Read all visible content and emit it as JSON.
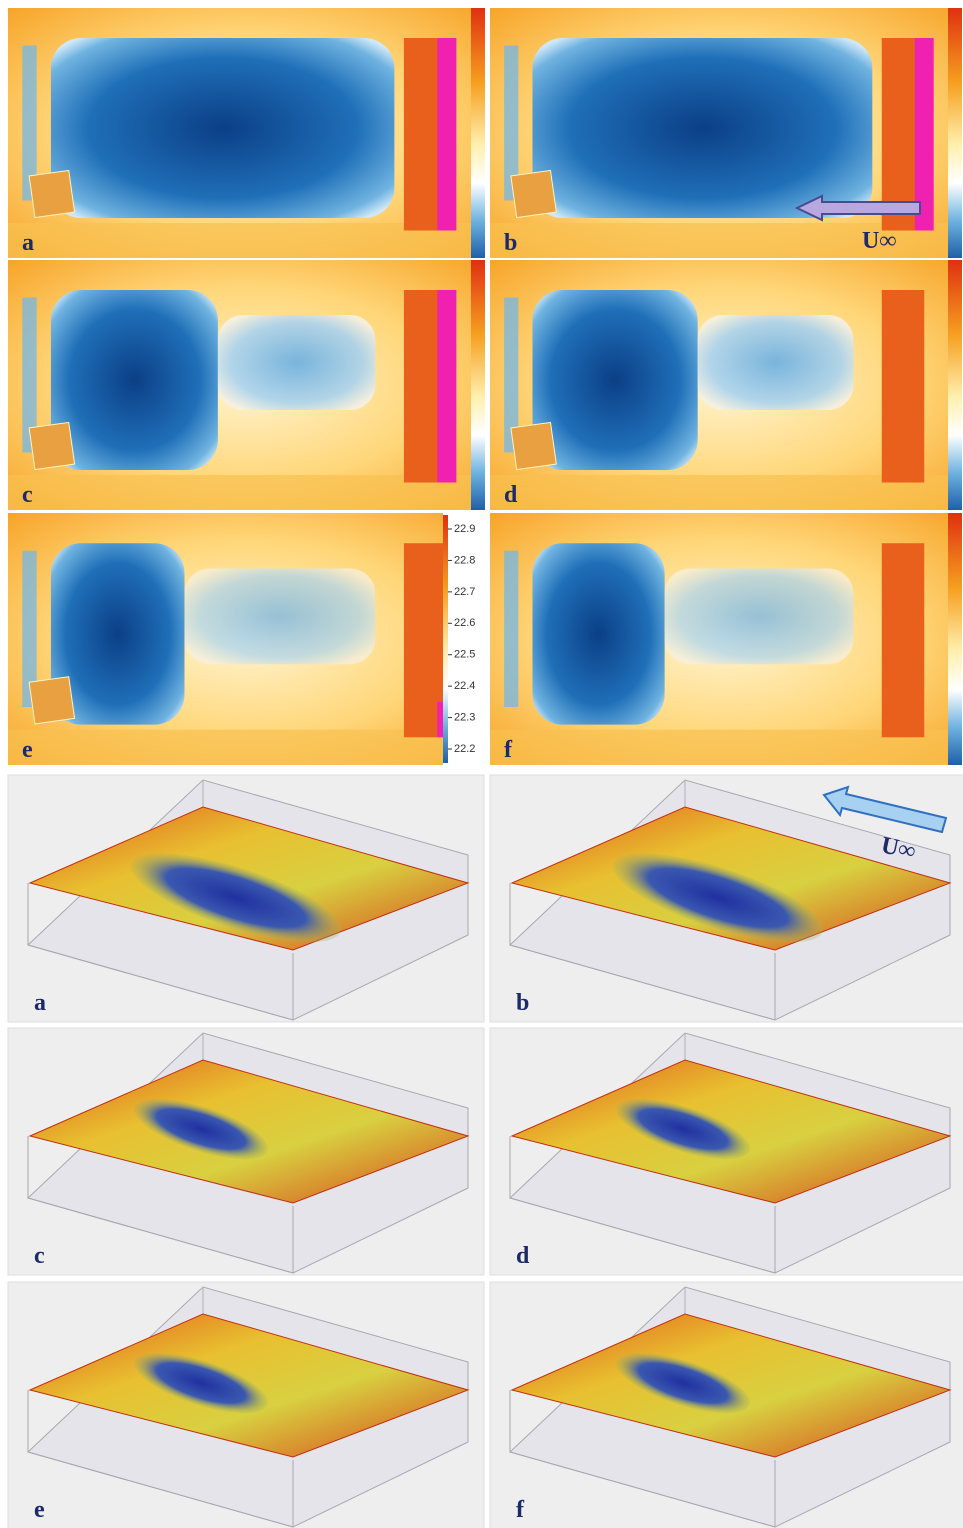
{
  "thermal_panels": [
    {
      "label": "a"
    },
    {
      "label": "b"
    },
    {
      "label": "c"
    },
    {
      "label": "d"
    },
    {
      "label": "e"
    },
    {
      "label": "f"
    }
  ],
  "flow_label_top": "U∞",
  "colorbar": {
    "ticks": [
      22.9,
      22.8,
      22.7,
      22.6,
      22.5,
      22.4,
      22.3,
      22.2
    ]
  },
  "surface_panels": [
    {
      "label": "a"
    },
    {
      "label": "b"
    },
    {
      "label": "c"
    },
    {
      "label": "d"
    },
    {
      "label": "e"
    },
    {
      "label": "f"
    }
  ],
  "flow_label_bottom": "U∞"
}
